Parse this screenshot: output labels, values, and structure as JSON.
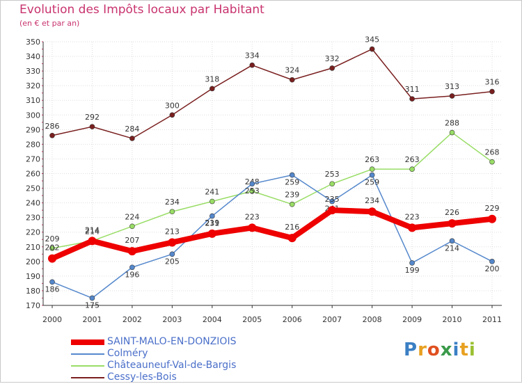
{
  "chart_data": {
    "type": "line",
    "title": "Evolution des Impôts locaux par Habitant",
    "subtitle": "(en € et par an)",
    "xlabel": "",
    "ylabel": "",
    "ylim": [
      170,
      350
    ],
    "ytick_step": 10,
    "grid": true,
    "categories": [
      "2000",
      "2001",
      "2002",
      "2003",
      "2004",
      "2005",
      "2006",
      "2007",
      "2008",
      "2009",
      "2010",
      "2011"
    ],
    "series": [
      {
        "name": "Cessy-les-Bois",
        "color": "#7a1f1f",
        "values": [
          286,
          292,
          284,
          300,
          318,
          334,
          324,
          332,
          345,
          311,
          313,
          316
        ]
      },
      {
        "name": "Châteauneuf-Val-de-Bargis",
        "color": "#99dd66",
        "values": [
          209,
          214,
          224,
          234,
          241,
          248,
          239,
          253,
          263,
          263,
          288,
          268
        ]
      },
      {
        "name": "Colméry",
        "color": "#5588cc",
        "values": [
          186,
          175,
          196,
          205,
          231,
          253,
          259,
          241,
          259,
          199,
          214,
          200
        ]
      },
      {
        "name": "SAINT-MALO-EN-DONZIOIS",
        "color": "#ee0000",
        "values": [
          202,
          214,
          207,
          213,
          219,
          223,
          216,
          235,
          234,
          223,
          226,
          229
        ]
      }
    ],
    "legend_order": [
      "SAINT-MALO-EN-DONZIOIS",
      "Colméry",
      "Châteauneuf-Val-de-Bargis",
      "Cessy-les-Bois"
    ],
    "legend_position": "bottom-left"
  },
  "brand": {
    "letters": [
      "P",
      "r",
      "o",
      "x",
      "i",
      "t",
      "i"
    ],
    "colors": [
      "#3a7fc4",
      "#e8a020",
      "#e05020",
      "#3a9a4a",
      "#3a7fc4",
      "#e8a020",
      "#9ac030"
    ]
  }
}
